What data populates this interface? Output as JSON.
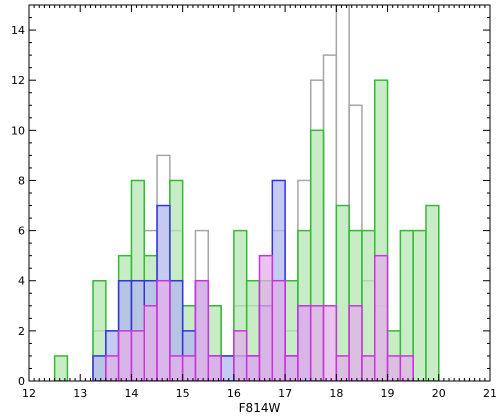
{
  "chart_data": {
    "type": "bar",
    "subtype": "overlaid-step-histogram",
    "title": "",
    "xlabel": "F814W",
    "ylabel": "",
    "xlim": [
      12,
      21
    ],
    "ylim": [
      0,
      15
    ],
    "x_ticks": [
      12,
      13,
      14,
      15,
      16,
      17,
      18,
      19,
      20,
      21
    ],
    "y_ticks": [
      0,
      2,
      4,
      6,
      8,
      10,
      12,
      14
    ],
    "bin_width": 0.25,
    "grid": false,
    "legend": "none",
    "series": [
      {
        "name": "",
        "color": "#a6a6a6",
        "fill": "none",
        "bins": [
          [
            13.25,
            2
          ],
          [
            13.5,
            2
          ],
          [
            13.75,
            4
          ],
          [
            14.0,
            4
          ],
          [
            14.25,
            6
          ],
          [
            14.5,
            9
          ],
          [
            14.75,
            6
          ],
          [
            15.0,
            3
          ],
          [
            15.25,
            6
          ],
          [
            15.5,
            3
          ],
          [
            15.75,
            1
          ],
          [
            16.0,
            3
          ],
          [
            16.25,
            3
          ],
          [
            16.5,
            3
          ],
          [
            16.75,
            6
          ],
          [
            17.0,
            2
          ],
          [
            17.25,
            8
          ],
          [
            17.5,
            12
          ],
          [
            17.75,
            13
          ],
          [
            18.0,
            15
          ],
          [
            18.25,
            11
          ],
          [
            18.5,
            4
          ],
          [
            18.75,
            3
          ]
        ]
      },
      {
        "name": "",
        "color": "#33bb33",
        "fill": "#b6e6b3",
        "bins": [
          [
            12.5,
            1
          ],
          [
            13.25,
            4
          ],
          [
            13.75,
            5
          ],
          [
            14.0,
            8
          ],
          [
            14.25,
            5
          ],
          [
            14.75,
            8
          ],
          [
            15.0,
            3
          ],
          [
            15.25,
            4
          ],
          [
            15.5,
            3
          ],
          [
            16.0,
            6
          ],
          [
            16.25,
            4
          ],
          [
            16.5,
            4
          ],
          [
            16.75,
            4
          ],
          [
            17.0,
            4
          ],
          [
            17.25,
            6
          ],
          [
            17.5,
            10
          ],
          [
            18.0,
            7
          ],
          [
            18.25,
            6
          ],
          [
            18.5,
            6
          ],
          [
            18.75,
            12
          ],
          [
            19.0,
            2
          ],
          [
            19.25,
            6
          ],
          [
            19.5,
            6
          ],
          [
            19.75,
            7
          ]
        ]
      },
      {
        "name": "",
        "color": "#3333dd",
        "fill": "#b0b8ec",
        "bins": [
          [
            13.25,
            1
          ],
          [
            13.5,
            2
          ],
          [
            13.75,
            4
          ],
          [
            14.0,
            4
          ],
          [
            14.25,
            4
          ],
          [
            14.5,
            7
          ],
          [
            14.75,
            4
          ],
          [
            15.0,
            2
          ],
          [
            15.25,
            4
          ],
          [
            15.5,
            1
          ],
          [
            15.75,
            1
          ],
          [
            16.0,
            1
          ],
          [
            16.25,
            1
          ],
          [
            16.5,
            3
          ],
          [
            16.75,
            8
          ],
          [
            17.0,
            1
          ],
          [
            17.25,
            3
          ]
        ]
      },
      {
        "name": "",
        "color": "#cc33dd",
        "fill": "#e2b0e8",
        "bins": [
          [
            13.5,
            1
          ],
          [
            13.75,
            2
          ],
          [
            14.0,
            2
          ],
          [
            14.25,
            3
          ],
          [
            14.5,
            4
          ],
          [
            14.75,
            1
          ],
          [
            15.0,
            1
          ],
          [
            15.25,
            4
          ],
          [
            15.5,
            1
          ],
          [
            16.0,
            2
          ],
          [
            16.25,
            1
          ],
          [
            16.5,
            5
          ],
          [
            16.75,
            4
          ],
          [
            17.0,
            1
          ],
          [
            17.25,
            3
          ],
          [
            17.5,
            3
          ],
          [
            17.75,
            3
          ],
          [
            18.0,
            1
          ],
          [
            18.25,
            3
          ],
          [
            18.5,
            1
          ],
          [
            18.75,
            5
          ],
          [
            19.0,
            1
          ],
          [
            19.25,
            1
          ]
        ]
      }
    ]
  }
}
